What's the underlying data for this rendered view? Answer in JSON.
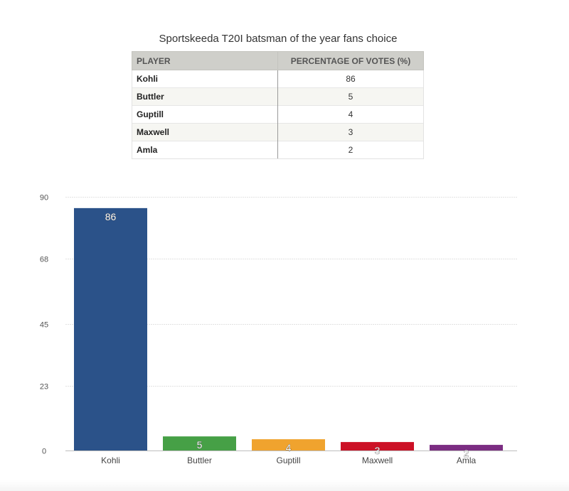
{
  "table": {
    "headers": {
      "player": "PLAYER",
      "votes": "PERCENTAGE OF VOTES (%)"
    },
    "rows": [
      {
        "player": "Kohli",
        "votes": "86"
      },
      {
        "player": "Buttler",
        "votes": "5"
      },
      {
        "player": "Guptill",
        "votes": "4"
      },
      {
        "player": "Maxwell",
        "votes": "3"
      },
      {
        "player": "Amla",
        "votes": "2"
      }
    ]
  },
  "chart_data": {
    "type": "bar",
    "title": "Sportskeeda T20I batsman of the year fans choice",
    "categories": [
      "Kohli",
      "Buttler",
      "Guptill",
      "Maxwell",
      "Amla"
    ],
    "values": [
      86,
      5,
      4,
      3,
      2
    ],
    "colors": [
      "#2b5289",
      "#46a046",
      "#f0a32e",
      "#cc1126",
      "#7b2d82"
    ],
    "xlabel": "",
    "ylabel": "",
    "ylim": [
      0,
      90
    ],
    "yticks": [
      0,
      23,
      45,
      68,
      90
    ],
    "grid": true,
    "legend": "none",
    "data_labels": true
  }
}
